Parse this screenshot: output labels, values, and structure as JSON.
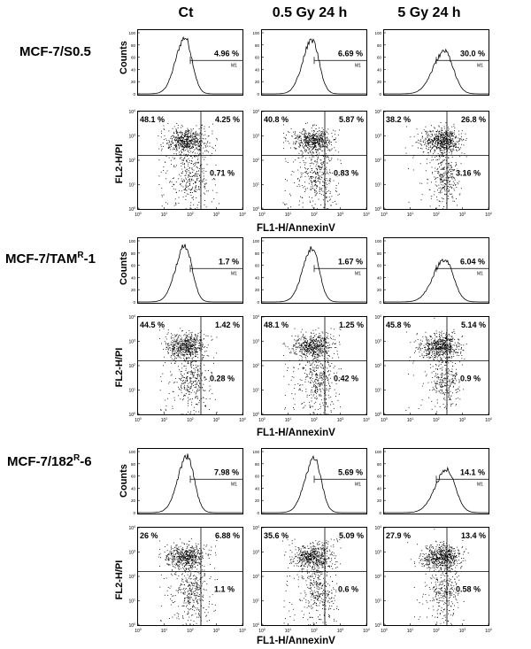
{
  "columns": [
    "Ct",
    "0.5 Gy 24 h",
    "5 Gy 24 h"
  ],
  "counts_label": "Counts",
  "pi_label": "FL2-H/PI",
  "annexin_label": "FL1-H/AnnexinV",
  "marker_label": "M1",
  "rows": [
    {
      "name": "MCF-7/S0.5",
      "name_base": "MCF-7/S0.5",
      "name_sup": "",
      "name_suffix": "",
      "hist_pct": [
        "4.96 %",
        "6.69 %",
        "30.0 %"
      ],
      "quad": [
        {
          "ul": "48.1 %",
          "ur": "4.25 %",
          "lr": "0.71 %"
        },
        {
          "ul": "40.8 %",
          "ur": "5.87 %",
          "lr": "0.83 %"
        },
        {
          "ul": "38.2 %",
          "ur": "26.8 %",
          "lr": "3.16 %"
        }
      ]
    },
    {
      "name": "MCF-7/TAMR-1",
      "name_base": "MCF-7/TAM",
      "name_sup": "R",
      "name_suffix": "-1",
      "hist_pct": [
        "1.7 %",
        "1.67 %",
        "6.04 %"
      ],
      "quad": [
        {
          "ul": "44.5 %",
          "ur": "1.42 %",
          "lr": "0.28 %"
        },
        {
          "ul": "48.1 %",
          "ur": "1.25 %",
          "lr": "0.42 %"
        },
        {
          "ul": "45.8 %",
          "ur": "5.14 %",
          "lr": "0.9 %"
        }
      ]
    },
    {
      "name": "MCF-7/182R-6",
      "name_base": "MCF-7/182",
      "name_sup": "R",
      "name_suffix": "-6",
      "hist_pct": [
        "7.98 %",
        "5.69 %",
        "14.1 %"
      ],
      "quad": [
        {
          "ul": "26 %",
          "ur": "6.88 %",
          "lr": "1.1 %"
        },
        {
          "ul": "35.6 %",
          "ur": "5.09 %",
          "lr": "0.6 %"
        },
        {
          "ul": "27.9 %",
          "ur": "13.4 %",
          "lr": "0.58 %"
        }
      ]
    }
  ],
  "chart_data": {
    "type": "scatter",
    "axes": {
      "histogram": {
        "x_scale": "log",
        "xlim": [
          1,
          10000
        ],
        "ylim": [
          0,
          100
        ],
        "yticks": [
          0,
          20,
          40,
          60,
          80,
          100
        ]
      },
      "dotplot": {
        "x_scale": "log",
        "y_scale": "log",
        "xlim": [
          1,
          10000
        ],
        "ylim": [
          1,
          10000
        ],
        "ticks": [
          "10^0",
          "10^1",
          "10^2",
          "10^3",
          "10^4"
        ]
      }
    },
    "colors": {
      "ink": "#000000"
    }
  }
}
